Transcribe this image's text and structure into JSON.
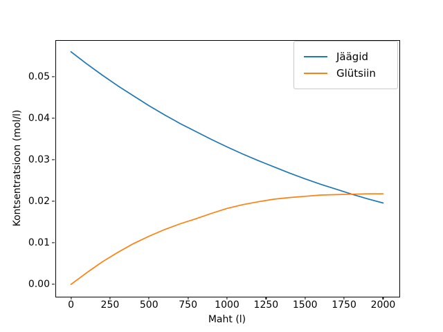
{
  "figure": {
    "background": "#ffffff",
    "frame_color": "#000000"
  },
  "chart_data": {
    "type": "line",
    "title": "",
    "xlabel": "Maht (l)",
    "ylabel": "Kontsentratsioon (mol/l)",
    "xlim": [
      0,
      2000
    ],
    "ylim": [
      0.0,
      0.056
    ],
    "margin_frac": 0.05,
    "grid": false,
    "legend_position": "upper right",
    "x_ticks": [
      0,
      250,
      500,
      750,
      1000,
      1250,
      1500,
      1750,
      2000
    ],
    "x_tick_labels": [
      "0",
      "250",
      "500",
      "750",
      "1000",
      "1250",
      "1500",
      "1750",
      "2000"
    ],
    "y_ticks": [
      0.0,
      0.01,
      0.02,
      0.03,
      0.04,
      0.05
    ],
    "y_tick_labels": [
      "0.00",
      "0.01",
      "0.02",
      "0.03",
      "0.04",
      "0.05"
    ],
    "x": [
      0,
      100,
      200,
      300,
      400,
      500,
      600,
      700,
      800,
      900,
      1000,
      1100,
      1200,
      1300,
      1400,
      1500,
      1600,
      1700,
      1800,
      1900,
      2000
    ],
    "series": [
      {
        "name": "Jäägid",
        "color": "#1f77b4",
        "values": [
          0.056,
          0.0531,
          0.0504,
          0.0478,
          0.0454,
          0.043,
          0.0408,
          0.0387,
          0.0368,
          0.0349,
          0.0331,
          0.0314,
          0.0298,
          0.0283,
          0.0268,
          0.0254,
          0.0241,
          0.0229,
          0.0217,
          0.0206,
          0.0196
        ]
      },
      {
        "name": "Glütsiin",
        "color": "#ff7f0e",
        "values": [
          0.0,
          0.0028,
          0.0054,
          0.0077,
          0.0098,
          0.0116,
          0.0132,
          0.0146,
          0.0158,
          0.0171,
          0.0183,
          0.0192,
          0.0199,
          0.0205,
          0.0209,
          0.0212,
          0.0215,
          0.0216,
          0.0217,
          0.0218,
          0.0218
        ]
      }
    ],
    "crossing_point": {
      "x": 1790,
      "y": 0.022
    }
  }
}
